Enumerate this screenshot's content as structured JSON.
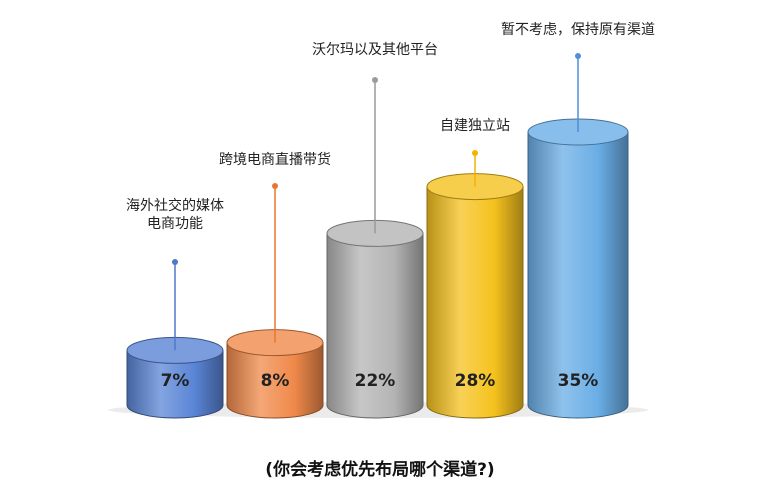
{
  "caption": "(你会考虑优先布局哪个渠道?)",
  "chart_data": {
    "type": "bar",
    "style": "3d-cylinder",
    "title": "",
    "categories": [
      [
        "海外社交的媒体",
        "电商功能"
      ],
      [
        "跨境电商直播带货"
      ],
      [
        "沃尔玛以及其他平台"
      ],
      [
        "自建独立站"
      ],
      [
        "暂不考虑，保持原有渠道"
      ]
    ],
    "values": [
      7,
      8,
      22,
      28,
      35
    ],
    "value_labels": [
      "7%",
      "8%",
      "22%",
      "28%",
      "35%"
    ],
    "unit": "%",
    "colors": [
      "#5a85d6",
      "#f0894a",
      "#b4b4b4",
      "#f5c21e",
      "#6aaee6"
    ],
    "label_colors": [
      "#4f78c8",
      "#e8772e",
      "#9a9a9a",
      "#f0b400",
      "#4f8fd8"
    ],
    "grid": false,
    "legend": "none"
  }
}
